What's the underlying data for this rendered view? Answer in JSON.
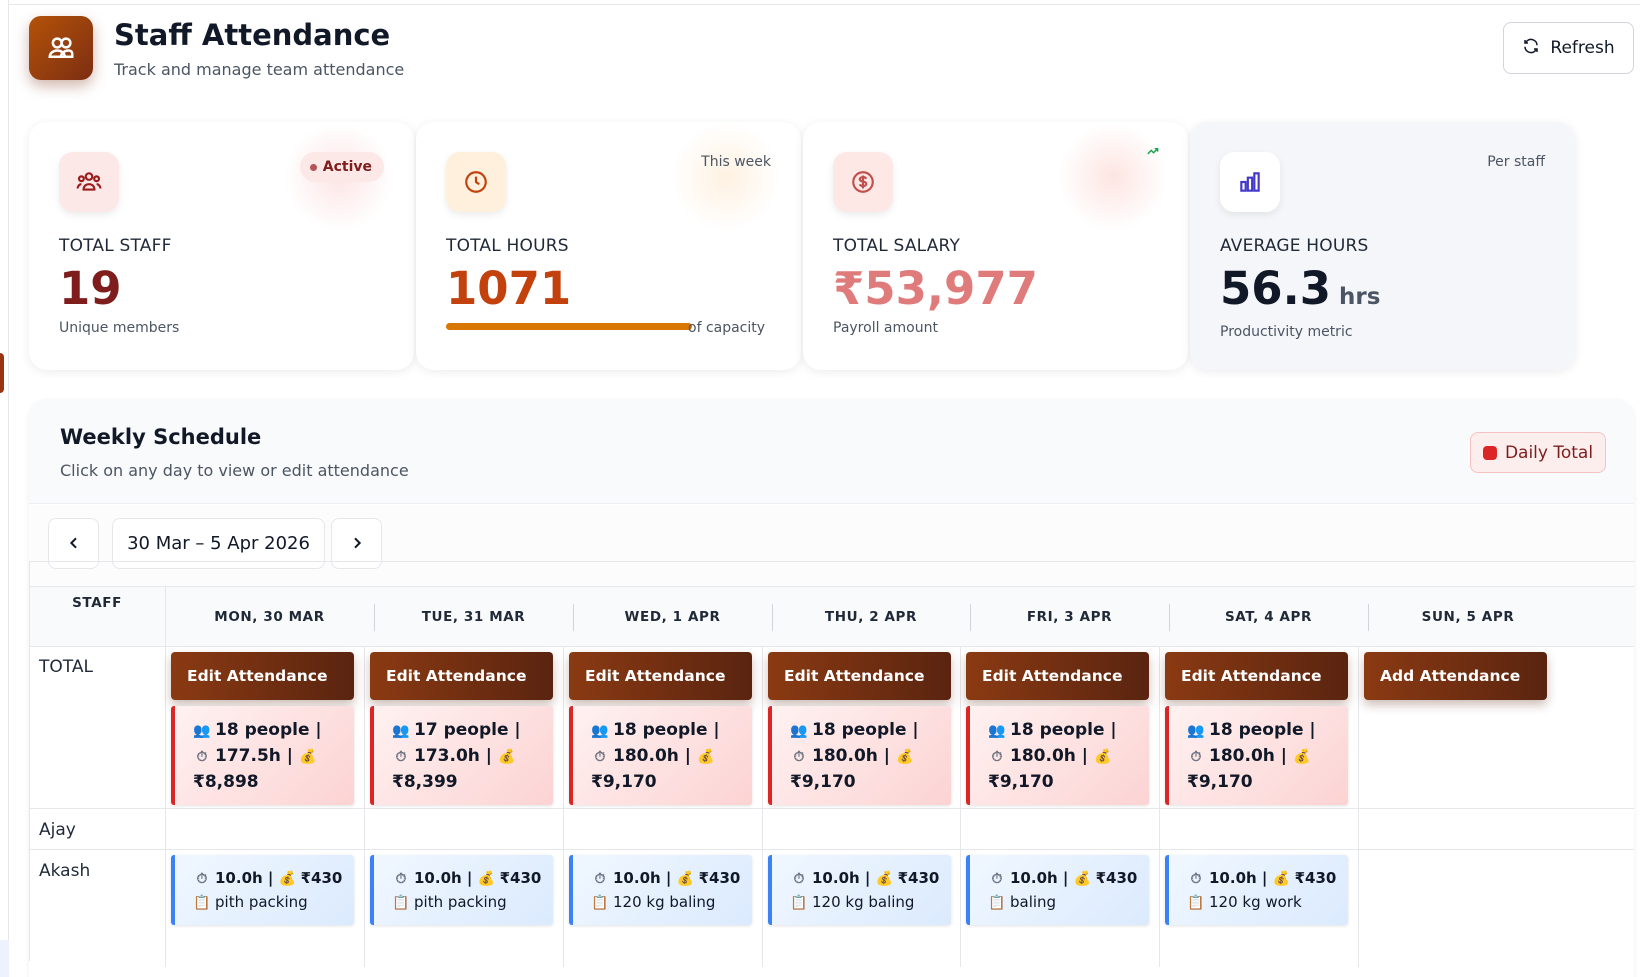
{
  "header": {
    "title": "Staff Attendance",
    "subtitle": "Track and manage team attendance",
    "refresh_label": "Refresh"
  },
  "stats": [
    {
      "label": "TOTAL STAFF",
      "value": "19",
      "sub": "Unique members",
      "badge": "Active",
      "color": "#7f1d1d",
      "icon": "users-icon"
    },
    {
      "label": "TOTAL HOURS",
      "value": "1071",
      "sub": "of capacity",
      "corner": "This week",
      "color": "#c2410c",
      "icon": "clock-icon",
      "progress_percent": 100
    },
    {
      "label": "TOTAL SALARY",
      "value": "₹53,977",
      "sub": "Payroll amount",
      "color": "#e07b7b",
      "icon": "dollar-icon",
      "trend_icon": "trending-up-icon"
    },
    {
      "label": "AVERAGE HOURS",
      "value": "56.3",
      "unit": "hrs",
      "sub": "Productivity metric",
      "corner": "Per staff",
      "color": "#111827",
      "icon": "bar-chart-icon"
    }
  ],
  "schedule": {
    "title": "Weekly Schedule",
    "subtitle": "Click on any day to view or edit attendance",
    "legend_label": "Daily Total",
    "date_range": "30 Mar – 5 Apr 2026",
    "columns": [
      "STAFF",
      "MON, 30 MAR",
      "TUE, 31 MAR",
      "WED, 1 APR",
      "THU, 2 APR",
      "FRI, 3 APR",
      "SAT, 4 APR",
      "SUN, 5 APR"
    ],
    "total_row": {
      "name": "TOTAL",
      "days": [
        {
          "button": "Edit Attendance",
          "people": "18 people |",
          "hours": "177.5h |",
          "amount": "₹8,898"
        },
        {
          "button": "Edit Attendance",
          "people": "17 people |",
          "hours": "173.0h |",
          "amount": "₹8,399"
        },
        {
          "button": "Edit Attendance",
          "people": "18 people |",
          "hours": "180.0h |",
          "amount": "₹9,170"
        },
        {
          "button": "Edit Attendance",
          "people": "18 people |",
          "hours": "180.0h |",
          "amount": "₹9,170"
        },
        {
          "button": "Edit Attendance",
          "people": "18 people |",
          "hours": "180.0h |",
          "amount": "₹9,170"
        },
        {
          "button": "Edit Attendance",
          "people": "18 people |",
          "hours": "180.0h |",
          "amount": "₹9,170"
        },
        {
          "button": "Add Attendance"
        }
      ]
    },
    "staff_rows": [
      {
        "name": "Ajay",
        "days": []
      },
      {
        "name": "Akash",
        "days": [
          {
            "hours": "10.0h |",
            "amount": "₹430",
            "task": "pith packing"
          },
          {
            "hours": "10.0h |",
            "amount": "₹430",
            "task": "pith packing"
          },
          {
            "hours": "10.0h |",
            "amount": "₹430",
            "task": "120 kg baling"
          },
          {
            "hours": "10.0h |",
            "amount": "₹430",
            "task": "120 kg baling"
          },
          {
            "hours": "10.0h |",
            "amount": "₹430",
            "task": "baling"
          },
          {
            "hours": "10.0h |",
            "amount": "₹430",
            "task": "120 kg work"
          }
        ]
      }
    ]
  }
}
